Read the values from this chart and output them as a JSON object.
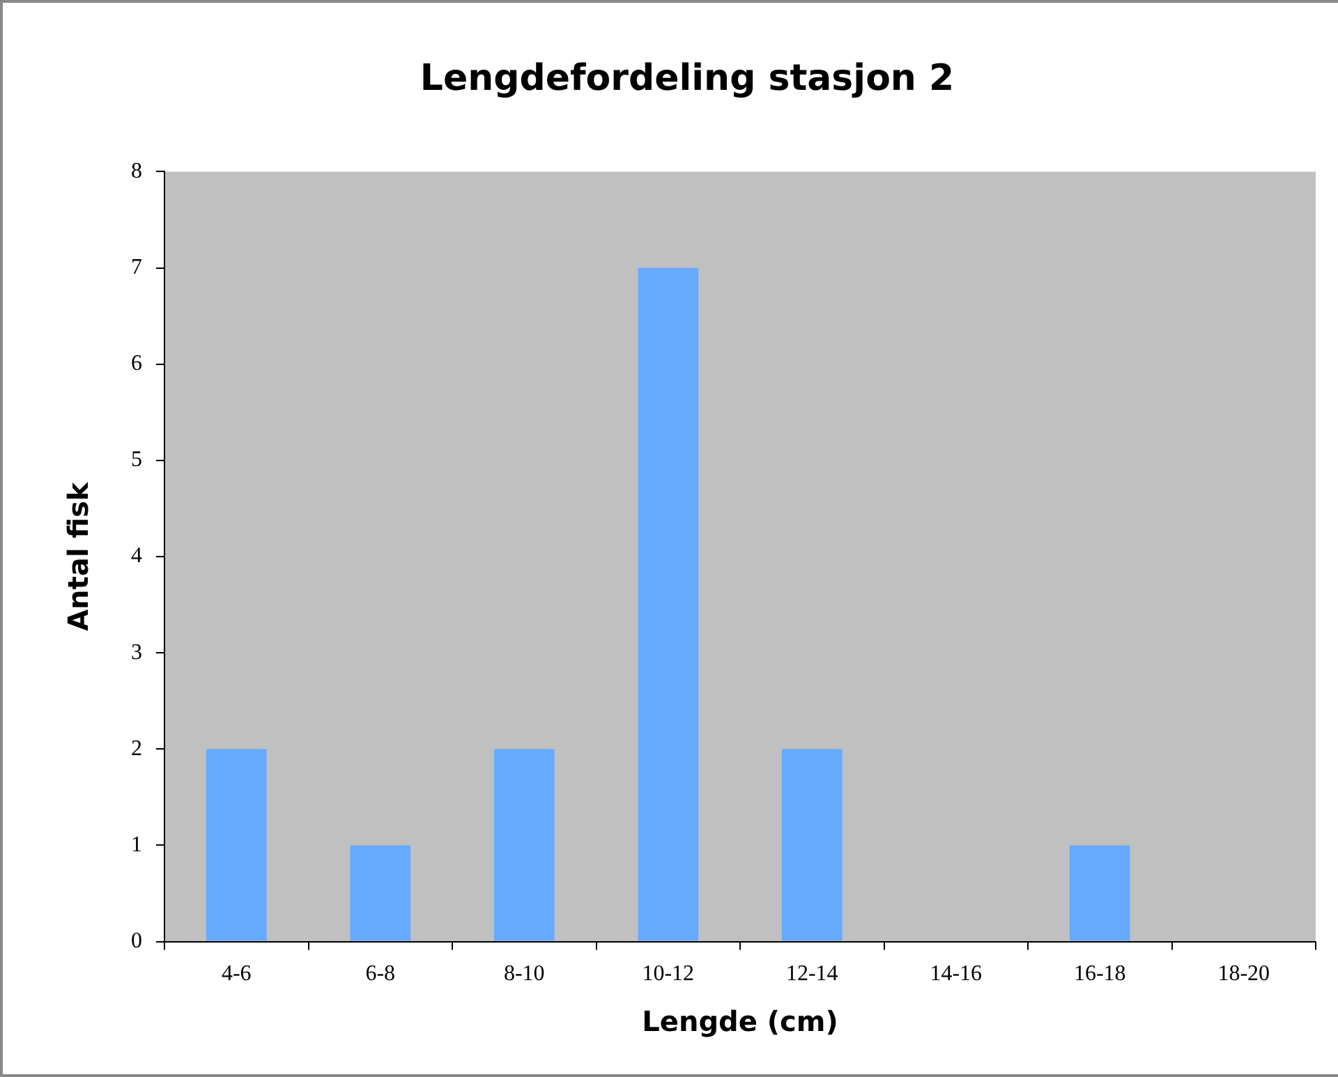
{
  "chart_data": {
    "type": "bar",
    "title": "Lengdefordeling stasjon 2",
    "xlabel": "Lengde (cm)",
    "ylabel": "Antal fisk",
    "categories": [
      "4-6",
      "6-8",
      "8-10",
      "10-12",
      "12-14",
      "14-16",
      "16-18",
      "18-20"
    ],
    "values": [
      2,
      1,
      2,
      7,
      2,
      0,
      1,
      0
    ],
    "color": "#66aaff",
    "ylim": [
      0,
      8
    ],
    "yticks": [
      0,
      1,
      2,
      3,
      4,
      5,
      6,
      7,
      8
    ],
    "grid": false,
    "legend": false
  }
}
